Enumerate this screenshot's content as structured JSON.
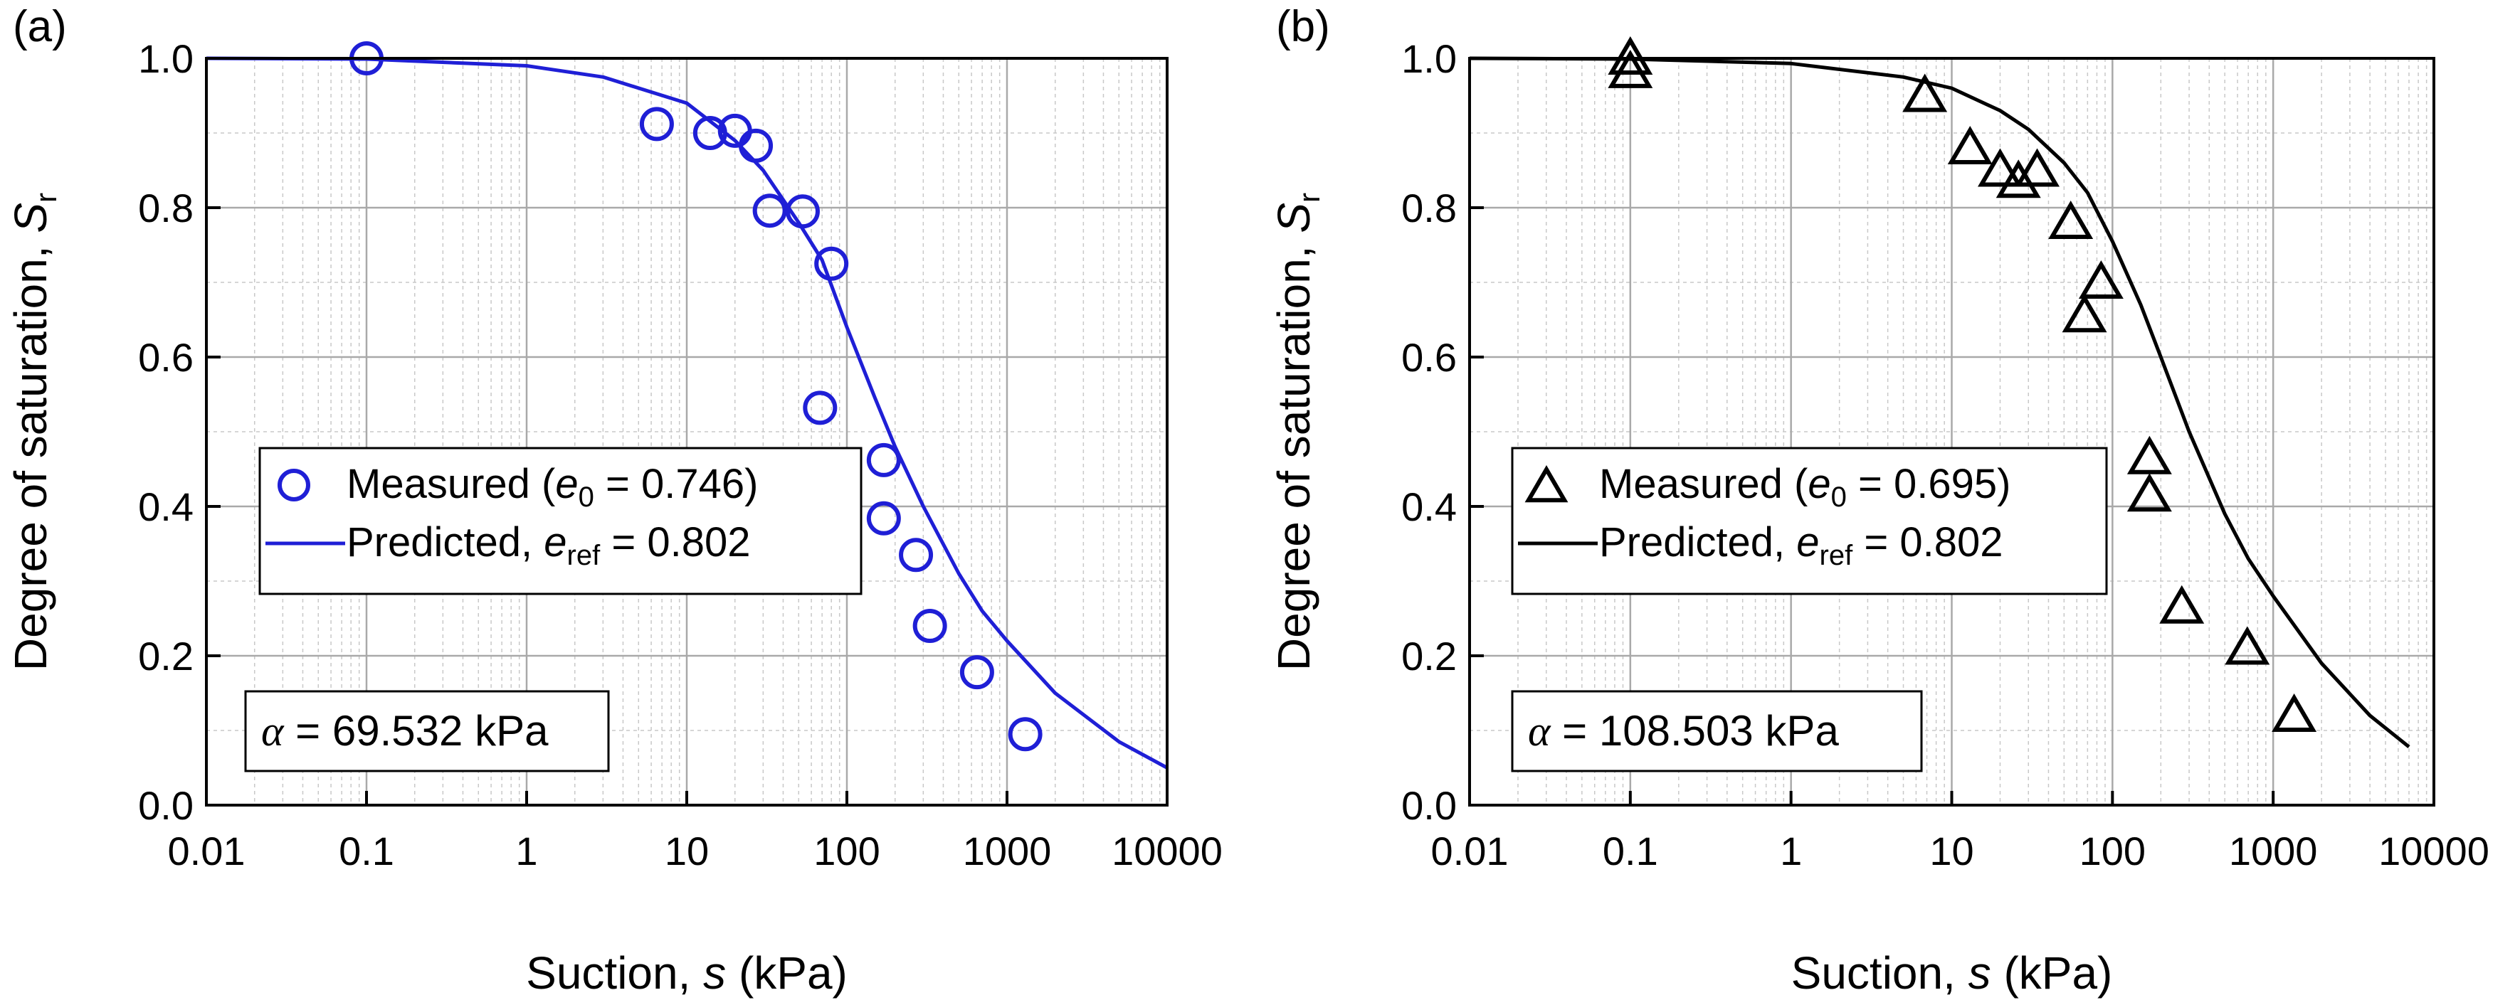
{
  "chart_data": [
    {
      "panel_label": "(a)",
      "type": "scatter",
      "xscale": "log",
      "xlim": [
        0.01,
        10000
      ],
      "ylim": [
        0.0,
        1.0
      ],
      "grid": true,
      "xlabel": {
        "text": "Suction, ",
        "var": "s",
        "unit": " (kPa)"
      },
      "ylabel": {
        "text": "Degree of saturation, ",
        "var": "S",
        "sub": "r"
      },
      "x_ticks": [
        0.01,
        0.1,
        1,
        10,
        100,
        1000,
        10000
      ],
      "x_tick_labels": [
        "0.01",
        "0.1",
        "1",
        "10",
        "100",
        "1000",
        "10000"
      ],
      "y_ticks": [
        0.0,
        0.2,
        0.4,
        0.6,
        0.8,
        1.0
      ],
      "y_tick_labels": [
        "0.0",
        "0.2",
        "0.4",
        "0.6",
        "0.8",
        "1.0"
      ],
      "color": "#1f1fd6",
      "marker": "circle",
      "legend": {
        "placement": "center-left",
        "measured": {
          "pre": "Measured (",
          "var": "e",
          "sub": "0",
          "post": " = 0.746)"
        },
        "predicted": {
          "pre": "Predicted, ",
          "var": "e",
          "sub": "ref",
          "post": " = 0.802"
        }
      },
      "annotation": {
        "symbol": "α",
        "text": " = 69.532 kPa"
      },
      "series": [
        {
          "name": "Measured",
          "kind": "points",
          "x": [
            0.1,
            6.5,
            14,
            20,
            27,
            33,
            53,
            80,
            68,
            170,
            170,
            270,
            330,
            650,
            1300
          ],
          "y": [
            1.0,
            0.912,
            0.9,
            0.903,
            0.883,
            0.796,
            0.795,
            0.725,
            0.532,
            0.462,
            0.384,
            0.335,
            0.24,
            0.178,
            0.095
          ]
        },
        {
          "name": "Predicted",
          "kind": "line",
          "x": [
            0.01,
            0.1,
            1,
            3,
            10,
            20,
            30,
            50,
            70,
            100,
            150,
            200,
            300,
            500,
            700,
            1000,
            2000,
            5000,
            10000
          ],
          "y": [
            1.0,
            0.999,
            0.99,
            0.975,
            0.94,
            0.89,
            0.85,
            0.78,
            0.73,
            0.64,
            0.545,
            0.48,
            0.4,
            0.31,
            0.26,
            0.22,
            0.15,
            0.085,
            0.05
          ]
        }
      ]
    },
    {
      "panel_label": "(b)",
      "type": "scatter",
      "xscale": "log",
      "xlim": [
        0.01,
        10000
      ],
      "ylim": [
        0.0,
        1.0
      ],
      "grid": true,
      "xlabel": {
        "text": "Suction, ",
        "var": "s",
        "unit": " (kPa)"
      },
      "ylabel": {
        "text": "Degree of saturation, ",
        "var": "S",
        "sub": "r"
      },
      "x_ticks": [
        0.01,
        0.1,
        1,
        10,
        100,
        1000,
        10000
      ],
      "x_tick_labels": [
        "0.01",
        "0.1",
        "1",
        "10",
        "100",
        "1000",
        "10000"
      ],
      "y_ticks": [
        0.0,
        0.2,
        0.4,
        0.6,
        0.8,
        1.0
      ],
      "y_tick_labels": [
        "0.0",
        "0.2",
        "0.4",
        "0.6",
        "0.8",
        "1.0"
      ],
      "color": "#000000",
      "marker": "triangle",
      "legend": {
        "placement": "center-left",
        "measured": {
          "pre": "Measured (",
          "var": "e",
          "sub": "0",
          "post": " = 0.695)"
        },
        "predicted": {
          "pre": "Predicted, ",
          "var": "e",
          "sub": "ref",
          "post": " = 0.802"
        }
      },
      "annotation": {
        "symbol": "α",
        "text": " = 108.503 kPa"
      },
      "series": [
        {
          "name": "Measured",
          "kind": "points",
          "x": [
            0.1,
            0.1,
            6.8,
            13,
            20,
            26,
            34,
            55,
            67,
            85,
            170,
            170,
            270,
            690,
            1350
          ],
          "y": [
            1.0,
            0.982,
            0.95,
            0.88,
            0.85,
            0.835,
            0.85,
            0.78,
            0.655,
            0.7,
            0.465,
            0.415,
            0.265,
            0.21,
            0.12
          ]
        },
        {
          "name": "Predicted",
          "kind": "line",
          "x": [
            0.01,
            0.1,
            1,
            5,
            10,
            20,
            30,
            50,
            70,
            100,
            150,
            200,
            300,
            500,
            700,
            1000,
            2000,
            4000,
            7000
          ],
          "y": [
            1.0,
            0.999,
            0.993,
            0.975,
            0.96,
            0.93,
            0.905,
            0.86,
            0.82,
            0.755,
            0.67,
            0.6,
            0.5,
            0.39,
            0.33,
            0.28,
            0.19,
            0.12,
            0.078
          ]
        }
      ]
    }
  ]
}
